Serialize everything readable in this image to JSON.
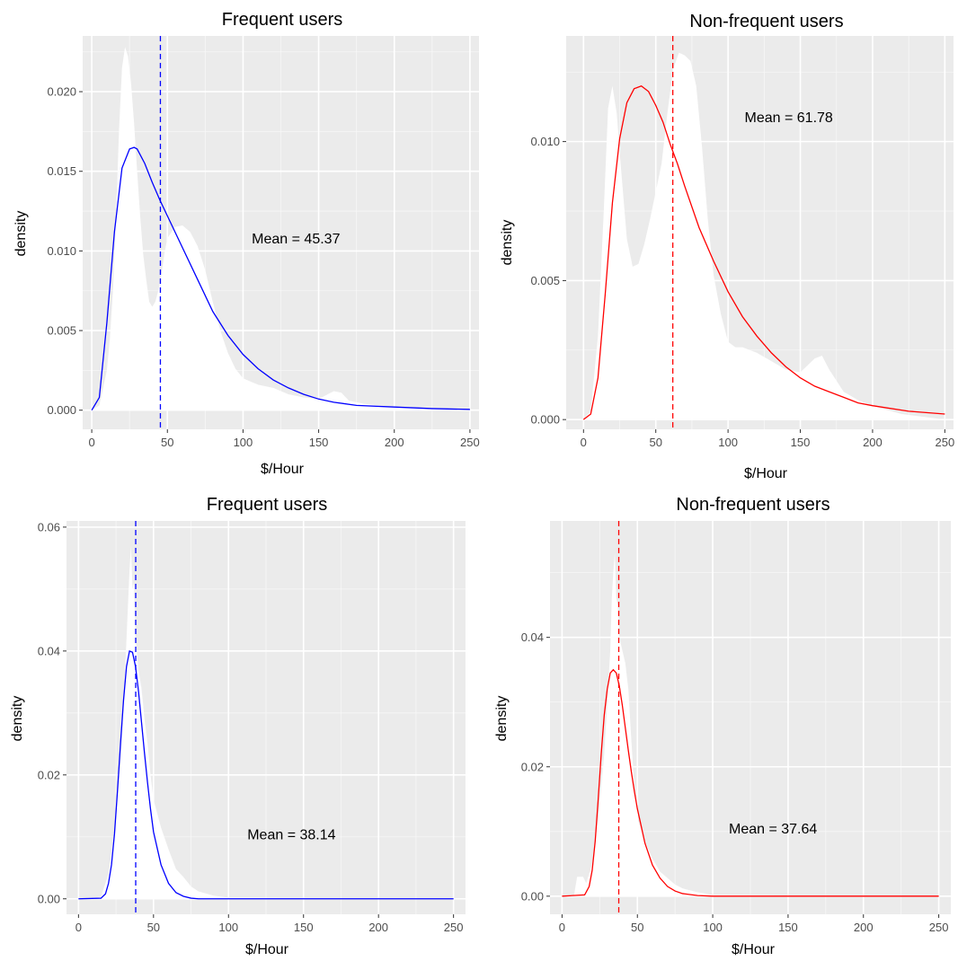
{
  "chart_data": [
    {
      "type": "area",
      "title": "Frequent users",
      "xlabel": "$/Hour",
      "ylabel": "density",
      "xlim": [
        -6,
        256
      ],
      "ylim": [
        -0.0012,
        0.0235
      ],
      "xticks": [
        0,
        50,
        100,
        150,
        200,
        250
      ],
      "xtick_labels": [
        "0",
        "50",
        "100",
        "150",
        "200",
        "250"
      ],
      "yticks": [
        0,
        0.005,
        0.01,
        0.015,
        0.02
      ],
      "ytick_labels": [
        "0.000",
        "0.005",
        "0.010",
        "0.015",
        "0.020"
      ],
      "grid": true,
      "mean": 45.37,
      "annotation": {
        "text": "Mean = 45.37",
        "x": 135,
        "y": 0.0108
      },
      "empirical_density": {
        "color": "#ffffff",
        "x": [
          0,
          5,
          10,
          12,
          14,
          16,
          18,
          20,
          22,
          24,
          26,
          28,
          30,
          32,
          34,
          36,
          38,
          40,
          42,
          44,
          46,
          48,
          50,
          55,
          60,
          65,
          70,
          75,
          80,
          85,
          90,
          95,
          100,
          110,
          120,
          130,
          140,
          150,
          160,
          165,
          170,
          180,
          200,
          220,
          250
        ],
        "y": [
          0,
          0.0003,
          0.0025,
          0.0045,
          0.0075,
          0.012,
          0.0175,
          0.0215,
          0.0228,
          0.0222,
          0.0205,
          0.018,
          0.015,
          0.0122,
          0.0098,
          0.0082,
          0.0068,
          0.0065,
          0.0068,
          0.0075,
          0.0085,
          0.0098,
          0.0108,
          0.0115,
          0.0116,
          0.0112,
          0.0103,
          0.0088,
          0.0068,
          0.005,
          0.0036,
          0.0026,
          0.002,
          0.0016,
          0.0014,
          0.001,
          0.0008,
          0.0007,
          0.0012,
          0.0011,
          0.0006,
          0.0004,
          0.0002,
          0.0001,
          0
        ]
      },
      "series": [
        {
          "color": "#0000ff",
          "x": [
            0,
            5,
            10,
            15,
            20,
            25,
            28,
            30,
            35,
            40,
            45,
            50,
            55,
            60,
            70,
            80,
            90,
            100,
            110,
            120,
            130,
            140,
            150,
            160,
            175,
            200,
            225,
            250
          ],
          "values": [
            0,
            0.0008,
            0.0055,
            0.0112,
            0.0152,
            0.0164,
            0.0165,
            0.0164,
            0.0155,
            0.0143,
            0.0132,
            0.0122,
            0.0112,
            0.0102,
            0.0082,
            0.0062,
            0.0047,
            0.0035,
            0.0026,
            0.0019,
            0.0014,
            0.001,
            0.0007,
            0.0005,
            0.0003,
            0.0002,
            0.0001,
            5e-05
          ]
        }
      ]
    },
    {
      "type": "area",
      "title": "Non-frequent users",
      "xlabel": "$/Hour",
      "ylabel": "density",
      "xlim": [
        -12,
        256
      ],
      "ylim": [
        -0.00035,
        0.0138
      ],
      "xticks": [
        0,
        50,
        100,
        150,
        200,
        250
      ],
      "xtick_labels": [
        "0",
        "50",
        "100",
        "150",
        "200",
        "250"
      ],
      "yticks": [
        0,
        0.005,
        0.01
      ],
      "ytick_labels": [
        "0.000",
        "0.005",
        "0.010"
      ],
      "grid": true,
      "mean": 61.78,
      "annotation": {
        "text": "Mean = 61.78",
        "x": 142,
        "y": 0.0109
      },
      "empirical_density": {
        "color": "#ffffff",
        "x": [
          0,
          5,
          10,
          14,
          17,
          20,
          23,
          26,
          30,
          34,
          38,
          42,
          46,
          50,
          54,
          58,
          62,
          66,
          70,
          74,
          78,
          82,
          86,
          90,
          95,
          100,
          105,
          110,
          120,
          130,
          140,
          150,
          160,
          165,
          170,
          180,
          190,
          200,
          220,
          250
        ],
        "y": [
          0,
          0.0003,
          0.003,
          0.0075,
          0.0112,
          0.012,
          0.011,
          0.009,
          0.0065,
          0.0055,
          0.0056,
          0.0063,
          0.0072,
          0.0082,
          0.0092,
          0.011,
          0.0126,
          0.0132,
          0.0131,
          0.0129,
          0.012,
          0.0098,
          0.0072,
          0.0052,
          0.0038,
          0.0028,
          0.0026,
          0.0026,
          0.0024,
          0.0021,
          0.0018,
          0.0017,
          0.0022,
          0.0023,
          0.0018,
          0.001,
          0.0007,
          0.0005,
          0.0002,
          0
        ]
      },
      "series": [
        {
          "color": "#ff0000",
          "x": [
            0,
            5,
            10,
            15,
            20,
            25,
            30,
            35,
            40,
            45,
            50,
            55,
            60,
            65,
            70,
            80,
            90,
            100,
            110,
            120,
            130,
            140,
            150,
            160,
            170,
            180,
            190,
            200,
            225,
            250
          ],
          "values": [
            0,
            0.0002,
            0.0015,
            0.0045,
            0.0078,
            0.0101,
            0.0114,
            0.0119,
            0.012,
            0.0118,
            0.0113,
            0.0107,
            0.0099,
            0.0092,
            0.0084,
            0.0069,
            0.0057,
            0.0046,
            0.0037,
            0.003,
            0.0024,
            0.0019,
            0.0015,
            0.0012,
            0.001,
            0.0008,
            0.0006,
            0.0005,
            0.0003,
            0.0002
          ]
        }
      ]
    },
    {
      "type": "area",
      "title": "Frequent users",
      "xlabel": "$/Hour",
      "ylabel": "density",
      "xlim": [
        -8,
        258
      ],
      "ylim": [
        -0.0025,
        0.061
      ],
      "xticks": [
        0,
        50,
        100,
        150,
        200,
        250
      ],
      "xtick_labels": [
        "0",
        "50",
        "100",
        "150",
        "200",
        "250"
      ],
      "yticks": [
        0,
        0.02,
        0.04,
        0.06
      ],
      "ytick_labels": [
        "0.00",
        "0.02",
        "0.04",
        "0.06"
      ],
      "grid": true,
      "mean": 38.14,
      "annotation": {
        "text": "Mean = 38.14",
        "x": 142,
        "y": 0.0105
      },
      "empirical_density": {
        "color": "#ffffff",
        "x": [
          0,
          15,
          20,
          25,
          28,
          30,
          32,
          34,
          35,
          36,
          37,
          38,
          40,
          42,
          44,
          46,
          48,
          50,
          55,
          60,
          65,
          70,
          75,
          80,
          90,
          100,
          250
        ],
        "y": [
          0,
          0.0003,
          0.004,
          0.013,
          0.022,
          0.031,
          0.042,
          0.053,
          0.057,
          0.05,
          0.051,
          0.042,
          0.037,
          0.034,
          0.029,
          0.025,
          0.02,
          0.016,
          0.0115,
          0.008,
          0.0048,
          0.0035,
          0.002,
          0.0012,
          0.0005,
          0.0002,
          0
        ]
      },
      "series": [
        {
          "color": "#0000ff",
          "x": [
            0,
            15,
            18,
            20,
            22,
            24,
            26,
            28,
            30,
            32,
            34,
            36,
            38,
            40,
            42,
            44,
            46,
            48,
            50,
            55,
            60,
            65,
            70,
            75,
            80,
            90,
            100,
            250
          ],
          "values": [
            0,
            0.0001,
            0.0008,
            0.0025,
            0.0055,
            0.0105,
            0.0175,
            0.025,
            0.032,
            0.0375,
            0.04,
            0.0398,
            0.0375,
            0.0335,
            0.0285,
            0.0235,
            0.0188,
            0.0145,
            0.0108,
            0.0055,
            0.0025,
            0.001,
            0.0004,
            0.0001,
            0,
            0,
            0,
            0
          ]
        }
      ]
    },
    {
      "type": "area",
      "title": "Non-frequent users",
      "xlabel": "$/Hour",
      "ylabel": "density",
      "xlim": [
        -8,
        258
      ],
      "ylim": [
        -0.0028,
        0.058
      ],
      "xticks": [
        0,
        50,
        100,
        150,
        200,
        250
      ],
      "xtick_labels": [
        "0",
        "50",
        "100",
        "150",
        "200",
        "250"
      ],
      "yticks": [
        0,
        0.02,
        0.04
      ],
      "ytick_labels": [
        "0.00",
        "0.02",
        "0.04"
      ],
      "grid": true,
      "mean": 37.64,
      "annotation": {
        "text": "Mean = 37.64",
        "x": 140,
        "y": 0.0105
      },
      "empirical_density": {
        "color": "#ffffff",
        "x": [
          0,
          8,
          10,
          12,
          14,
          16,
          20,
          24,
          28,
          30,
          32,
          33,
          34,
          35,
          36,
          37,
          38,
          40,
          42,
          44,
          46,
          48,
          50,
          55,
          60,
          65,
          70,
          75,
          80,
          90,
          100,
          250
        ],
        "y": [
          0,
          0.0002,
          0.003,
          0.003,
          0.003,
          0.002,
          0.005,
          0.012,
          0.022,
          0.03,
          0.038,
          0.046,
          0.05,
          0.053,
          0.046,
          0.045,
          0.04,
          0.038,
          0.036,
          0.032,
          0.024,
          0.017,
          0.012,
          0.0085,
          0.0058,
          0.0038,
          0.0028,
          0.0018,
          0.0012,
          0.0006,
          0.0002,
          0
        ]
      },
      "series": [
        {
          "color": "#ff0000",
          "x": [
            0,
            15,
            18,
            20,
            22,
            24,
            26,
            28,
            30,
            32,
            34,
            36,
            38,
            40,
            42,
            44,
            46,
            48,
            50,
            55,
            60,
            65,
            70,
            75,
            80,
            90,
            100,
            250
          ],
          "values": [
            0,
            0.0002,
            0.0015,
            0.004,
            0.0085,
            0.015,
            0.022,
            0.028,
            0.032,
            0.0345,
            0.035,
            0.0345,
            0.0325,
            0.0295,
            0.026,
            0.0225,
            0.0192,
            0.0162,
            0.0135,
            0.0082,
            0.0048,
            0.0028,
            0.0015,
            0.0008,
            0.0004,
            0.0001,
            0,
            0
          ]
        }
      ]
    }
  ]
}
